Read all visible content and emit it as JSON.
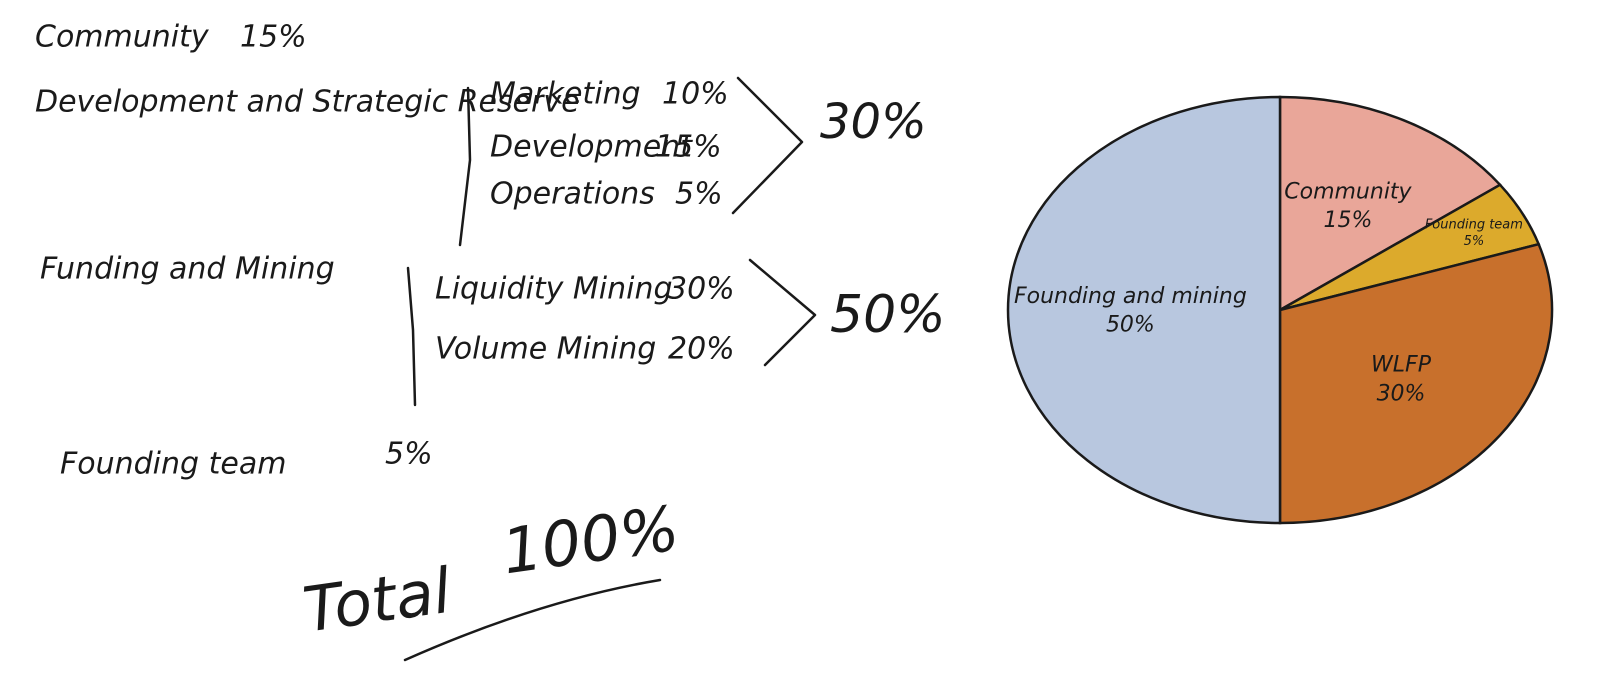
{
  "notes": {
    "community": {
      "label": "Community",
      "share": "15%"
    },
    "reserve": {
      "label": "Development and Strategic Reserve",
      "items": [
        {
          "label": "Marketing",
          "share": "10%"
        },
        {
          "label": "Development",
          "share": "15%"
        },
        {
          "label": "Operations",
          "share": "5%"
        }
      ],
      "total": "30%"
    },
    "funding": {
      "label": "Funding and Mining",
      "items": [
        {
          "label": "Liquidity Mining",
          "share": "30%"
        },
        {
          "label": "Volume Mining",
          "share": "20%"
        }
      ],
      "total": "50%"
    },
    "team": {
      "label": "Founding team",
      "share": "5%"
    },
    "total": {
      "label": "Total",
      "share": "100%"
    }
  },
  "chart_data": {
    "type": "pie",
    "categories": [
      "Community",
      "Founding team",
      "WLFP",
      "Founding and mining"
    ],
    "values": [
      15,
      5,
      30,
      50
    ],
    "value_labels": [
      "15%",
      "5%",
      "30%",
      "50%"
    ],
    "colors": [
      "#e9a699",
      "#dcaa2c",
      "#c8702c",
      "#b8c7df"
    ]
  }
}
